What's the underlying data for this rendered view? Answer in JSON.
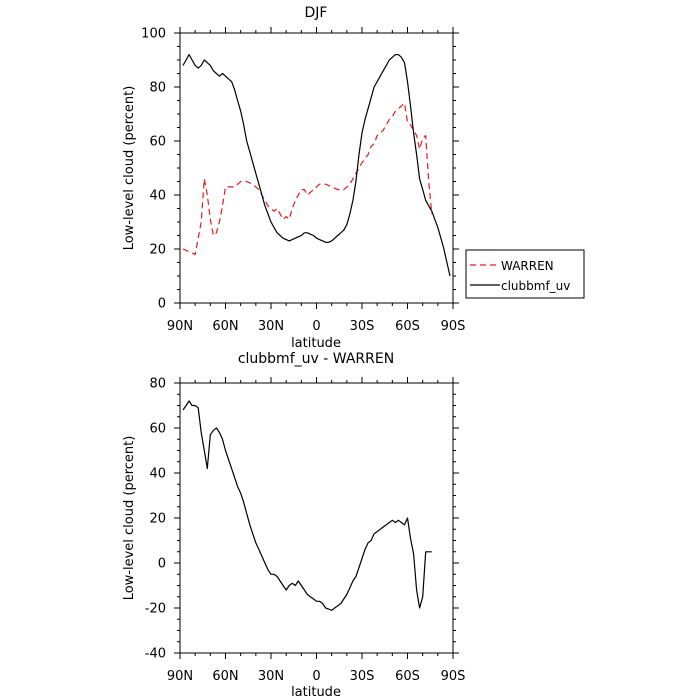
{
  "chart_data": [
    {
      "type": "line",
      "title": "DJF",
      "xlabel": "latitude",
      "ylabel": "Low-level cloud (percent)",
      "xlim": [
        90,
        -90
      ],
      "ylim": [
        0,
        100
      ],
      "x_ticks": [
        90,
        60,
        30,
        0,
        -30,
        -60,
        -90
      ],
      "x_tick_labels": [
        "90N",
        "60N",
        "30N",
        "0",
        "30S",
        "60S",
        "90S"
      ],
      "y_ticks": [
        0,
        20,
        40,
        60,
        80,
        100
      ],
      "y_tick_labels": [
        "0",
        "20",
        "40",
        "60",
        "80",
        "100"
      ],
      "legend_position": "right-outside",
      "series": [
        {
          "name": "WARREN",
          "color": "#e41a1c",
          "dash": "dashed",
          "x": [
            88,
            84,
            80,
            76,
            74,
            72,
            70,
            68,
            66,
            64,
            62,
            60,
            56,
            54,
            50,
            46,
            42,
            40,
            38,
            36,
            34,
            32,
            30,
            28,
            26,
            24,
            22,
            20,
            18,
            16,
            14,
            12,
            10,
            8,
            6,
            4,
            2,
            0,
            -2,
            -4,
            -6,
            -10,
            -14,
            -18,
            -22,
            -26,
            -30,
            -34,
            -36,
            -38,
            -40,
            -42,
            -44,
            -46,
            -48,
            -50,
            -52,
            -54,
            -56,
            -58,
            -60,
            -62,
            -64,
            -66,
            -68,
            -70,
            -72,
            -74,
            -76
          ],
          "y": [
            20,
            19,
            18,
            30,
            46,
            40,
            31,
            25,
            26,
            30,
            36,
            43,
            43,
            43,
            45,
            45,
            44,
            43,
            42,
            40,
            38,
            36,
            35,
            34,
            35,
            33,
            31,
            32,
            31,
            35,
            38,
            40,
            42,
            42,
            40,
            41,
            42,
            43,
            44,
            44,
            44,
            43,
            42,
            42,
            44,
            48,
            52,
            55,
            58,
            59,
            62,
            63,
            64,
            66,
            68,
            69,
            71,
            72,
            73,
            74,
            67,
            66,
            64,
            62,
            57,
            61,
            62,
            45,
            33
          ]
        },
        {
          "name": "clubbmf_uv",
          "color": "#000000",
          "dash": "solid",
          "x": [
            88,
            86,
            84,
            82,
            80,
            78,
            76,
            74,
            72,
            70,
            68,
            66,
            64,
            62,
            60,
            58,
            56,
            54,
            52,
            50,
            48,
            46,
            44,
            42,
            40,
            38,
            36,
            34,
            32,
            30,
            28,
            26,
            24,
            22,
            20,
            18,
            16,
            14,
            12,
            10,
            8,
            6,
            4,
            2,
            0,
            -2,
            -4,
            -6,
            -8,
            -10,
            -12,
            -14,
            -16,
            -18,
            -20,
            -22,
            -24,
            -26,
            -28,
            -30,
            -32,
            -34,
            -36,
            -38,
            -40,
            -42,
            -44,
            -46,
            -48,
            -50,
            -52,
            -54,
            -56,
            -58,
            -60,
            -62,
            -64,
            -66,
            -68,
            -70,
            -72,
            -74,
            -76,
            -78,
            -80,
            -82,
            -84,
            -86,
            -88
          ],
          "y": [
            88,
            90,
            92,
            90,
            88,
            87,
            88,
            90,
            89,
            88,
            86,
            85,
            84,
            85,
            84,
            83,
            82,
            79,
            75,
            71,
            66,
            60,
            56,
            52,
            48,
            44,
            40,
            36,
            33,
            30,
            28,
            26,
            25,
            24,
            23.5,
            23,
            23.5,
            24,
            24.5,
            25,
            26,
            26,
            25.5,
            25,
            24,
            23.5,
            23,
            22.5,
            22.5,
            23,
            24,
            25,
            26,
            27,
            29,
            33,
            38,
            45,
            55,
            63,
            68,
            72,
            76,
            80,
            82,
            84,
            86,
            88,
            90,
            91,
            92,
            92,
            91,
            89,
            82,
            73,
            63,
            55,
            46,
            42,
            38,
            36,
            34,
            31,
            28,
            24,
            20,
            15,
            10
          ]
        }
      ]
    },
    {
      "type": "line",
      "title": "clubbmf_uv - WARREN",
      "xlabel": "latitude",
      "ylabel": "Low-level cloud (percent)",
      "xlim": [
        90,
        -90
      ],
      "ylim": [
        -40,
        80
      ],
      "x_ticks": [
        90,
        60,
        30,
        0,
        -30,
        -60,
        -90
      ],
      "x_tick_labels": [
        "90N",
        "60N",
        "30N",
        "0",
        "30S",
        "60S",
        "90S"
      ],
      "y_ticks": [
        -40,
        -20,
        0,
        20,
        40,
        60,
        80
      ],
      "y_tick_labels": [
        "-40",
        "-20",
        "0",
        "20",
        "40",
        "60",
        "80"
      ],
      "series": [
        {
          "name": "",
          "color": "#000000",
          "dash": "solid",
          "x": [
            88,
            86,
            84,
            82,
            80,
            78,
            76,
            74,
            72,
            70,
            68,
            66,
            64,
            62,
            60,
            58,
            56,
            54,
            52,
            50,
            48,
            46,
            44,
            42,
            40,
            38,
            36,
            34,
            32,
            30,
            28,
            26,
            24,
            22,
            20,
            18,
            16,
            14,
            12,
            10,
            8,
            6,
            4,
            2,
            0,
            -2,
            -4,
            -6,
            -8,
            -10,
            -12,
            -14,
            -16,
            -18,
            -20,
            -22,
            -24,
            -26,
            -28,
            -30,
            -32,
            -34,
            -36,
            -38,
            -40,
            -42,
            -44,
            -46,
            -48,
            -50,
            -52,
            -54,
            -56,
            -58,
            -60,
            -62,
            -64,
            -66,
            -68,
            -70,
            -72,
            -74,
            -76
          ],
          "y": [
            68,
            70,
            72,
            70,
            70,
            69,
            58,
            50,
            42,
            57,
            59,
            60,
            58,
            55,
            50,
            46,
            42,
            38,
            34,
            31,
            27,
            22,
            17,
            13,
            9,
            6,
            3,
            0,
            -3,
            -5,
            -5,
            -6,
            -8,
            -10,
            -12,
            -10,
            -9,
            -10,
            -8,
            -10,
            -12,
            -14,
            -15,
            -16,
            -17,
            -17,
            -18,
            -20,
            -20.5,
            -21,
            -20,
            -19,
            -18,
            -16,
            -14,
            -11,
            -8,
            -6,
            -2,
            2,
            6,
            9,
            10,
            13,
            14,
            15,
            16,
            17,
            18,
            19,
            18,
            19,
            18,
            17,
            20,
            11,
            4,
            -12,
            -20,
            -15,
            5,
            5,
            5
          ]
        }
      ]
    }
  ]
}
